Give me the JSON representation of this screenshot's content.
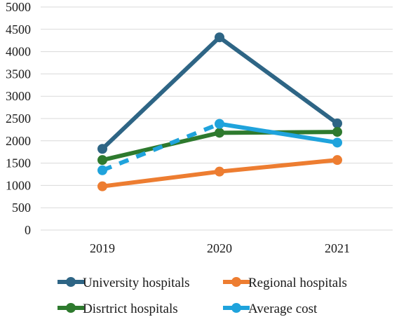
{
  "chart_data": {
    "type": "line",
    "x": [
      "2019",
      "2020",
      "2021"
    ],
    "yticks": [
      "0",
      "500",
      "1000",
      "1500",
      "2000",
      "2500",
      "3000",
      "3500",
      "4000",
      "4500",
      "5000"
    ],
    "ylim": [
      0,
      5000
    ],
    "grid": true,
    "legend_position": "bottom",
    "series": [
      {
        "name": "University hospitals",
        "color": "#2e6585",
        "values": [
          1820,
          4320,
          2390
        ],
        "dash": "solid"
      },
      {
        "name": "Regional hospitals",
        "color": "#ed7d31",
        "values": [
          980,
          1310,
          1570
        ],
        "dash": "solid"
      },
      {
        "name": "Disrtrict hospitals",
        "color": "#2e7a2e",
        "values": [
          1570,
          2180,
          2200
        ],
        "dash": "solid"
      },
      {
        "name": "Average cost",
        "color": "#1fa3dc",
        "values": [
          1340,
          2380,
          1960
        ],
        "dash": "dashed-first-segment"
      }
    ]
  }
}
